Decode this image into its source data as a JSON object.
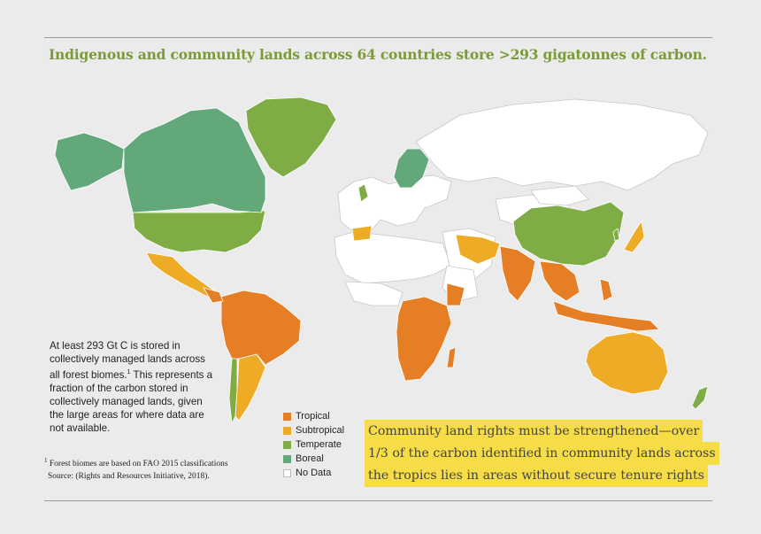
{
  "title": "Indigenous and community lands across 64 countries store >293 gigatonnes of carbon.",
  "colors": {
    "tropical": "#e67e25",
    "subtropical": "#eeab25",
    "temperate": "#7fac45",
    "boreal": "#62a87b",
    "no_data": "#ffffff",
    "highlight": "#f6dc47",
    "title": "#7b9b3a"
  },
  "note": {
    "text": "At least 293 Gt C is stored in collectively managed lands across all forest biomes.",
    "superscript": "1",
    "text2": " This represents a fraction of the carbon stored in collectively managed lands, given the large areas for where data are not available."
  },
  "footnote": {
    "marker": "1",
    "line1": " Forest biomes are based on FAO 2015 classifications",
    "line2": "Source: (Rights and Resources Initiative, 2018)."
  },
  "legend": [
    {
      "label": "Tropical",
      "biome": "tropical"
    },
    {
      "label": "Subtropical",
      "biome": "subtropical"
    },
    {
      "label": "Temperate",
      "biome": "temperate"
    },
    {
      "label": "Boreal",
      "biome": "boreal"
    },
    {
      "label": "No Data",
      "biome": "no_data"
    }
  ],
  "callout_lines": [
    "Community land rights must be strengthened—over",
    "1/3 of the carbon identified in community lands across",
    "the tropics lies in areas without secure tenure rights"
  ]
}
